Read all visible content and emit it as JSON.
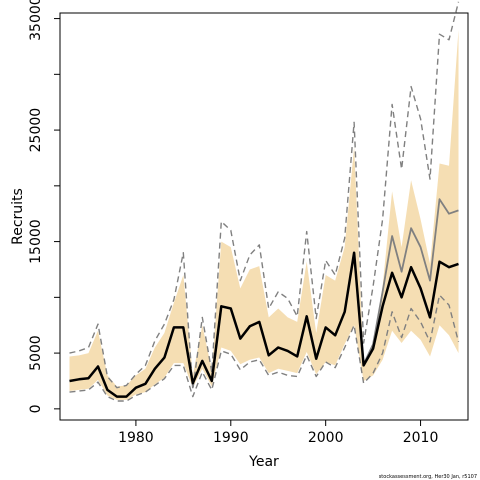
{
  "chart_data": {
    "type": "line",
    "title": "",
    "xlabel": "Year",
    "ylabel": "Recruits",
    "xlim": [
      1972,
      2015
    ],
    "ylim": [
      -1000,
      35500
    ],
    "x_ticks": [
      1980,
      1990,
      2000,
      2010
    ],
    "y_ticks": [
      0,
      5000,
      15000,
      25000,
      35000
    ],
    "grid": false,
    "legend": "none",
    "footnote": "stockassessment.org, Her30 Jan, r5107",
    "colors": {
      "band": "#F5DEB3",
      "median": "#000000",
      "comparison": "#808080"
    },
    "x": [
      1973,
      1974,
      1975,
      1976,
      1977,
      1978,
      1979,
      1980,
      1981,
      1982,
      1983,
      1984,
      1985,
      1986,
      1987,
      1988,
      1989,
      1990,
      1991,
      1992,
      1993,
      1994,
      1995,
      1996,
      1997,
      1998,
      1999,
      2000,
      2001,
      2002,
      2003,
      2004,
      2005,
      2006,
      2007,
      2008,
      2009,
      2010,
      2011,
      2012,
      2013,
      2014
    ],
    "series": [
      {
        "role": "band-lower",
        "values": [
          1600,
          1700,
          1800,
          2600,
          1200,
          800,
          800,
          1300,
          1500,
          2200,
          2800,
          4100,
          4100,
          1900,
          3600,
          2000,
          5500,
          5200,
          4000,
          4400,
          4600,
          3200,
          3600,
          3400,
          3200,
          5100,
          3100,
          4200,
          3900,
          5800,
          7500,
          2500,
          3000,
          4400,
          7000,
          5900,
          7000,
          6200,
          4700,
          7500,
          6600,
          5000
        ]
      },
      {
        "role": "band-upper",
        "values": [
          4700,
          4800,
          5000,
          7000,
          3000,
          2000,
          2100,
          3000,
          3600,
          5500,
          6800,
          9500,
          12000,
          3000,
          7500,
          3500,
          15000,
          14500,
          10800,
          12500,
          12800,
          8200,
          9000,
          8200,
          7800,
          13200,
          6800,
          12000,
          11500,
          14500,
          23500,
          4000,
          5500,
          11000,
          19500,
          14500,
          20500,
          17000,
          13000,
          22000,
          21800,
          34000
        ]
      },
      {
        "role": "median",
        "values": [
          2500,
          2650,
          2750,
          3800,
          1700,
          1100,
          1100,
          1900,
          2250,
          3600,
          4600,
          7300,
          7300,
          2300,
          4300,
          2500,
          9200,
          9000,
          6300,
          7400,
          7800,
          4800,
          5500,
          5200,
          4700,
          8300,
          4500,
          7300,
          6600,
          8700,
          14000,
          3900,
          5400,
          9200,
          12200,
          10000,
          12700,
          10800,
          8200,
          13200,
          12700,
          13000
        ]
      },
      {
        "role": "comparison-median",
        "values": [
          2500,
          2650,
          2750,
          3800,
          1700,
          1100,
          1100,
          1900,
          2250,
          3600,
          4600,
          7300,
          7300,
          2300,
          4300,
          2500,
          9200,
          9000,
          6300,
          7400,
          7800,
          4800,
          5500,
          5200,
          4700,
          8300,
          4500,
          7300,
          6600,
          8700,
          14000,
          4000,
          5800,
          10500,
          15500,
          12300,
          16200,
          14500,
          11500,
          18800,
          17500,
          17800
        ]
      },
      {
        "role": "comparison-lower",
        "values": [
          1500,
          1600,
          1700,
          2400,
          1100,
          700,
          700,
          1200,
          1500,
          2100,
          2700,
          3900,
          3900,
          1100,
          3300,
          1700,
          5200,
          4900,
          3500,
          4200,
          4400,
          3000,
          3300,
          3000,
          2900,
          4800,
          2900,
          4200,
          3700,
          5500,
          7500,
          2300,
          3200,
          5000,
          8700,
          6400,
          9000,
          7800,
          6000,
          10200,
          9300,
          6000
        ]
      },
      {
        "role": "comparison-upper",
        "values": [
          5000,
          5200,
          5500,
          7600,
          2900,
          1900,
          2100,
          3100,
          3900,
          6100,
          7600,
          9800,
          14000,
          1700,
          8200,
          3300,
          16800,
          16000,
          11500,
          13800,
          14700,
          9000,
          10500,
          9900,
          8300,
          15900,
          8100,
          13300,
          12000,
          15300,
          25700,
          5900,
          11000,
          17000,
          27300,
          21500,
          28900,
          26000,
          20600,
          33600,
          33100,
          36500
        ]
      }
    ]
  }
}
